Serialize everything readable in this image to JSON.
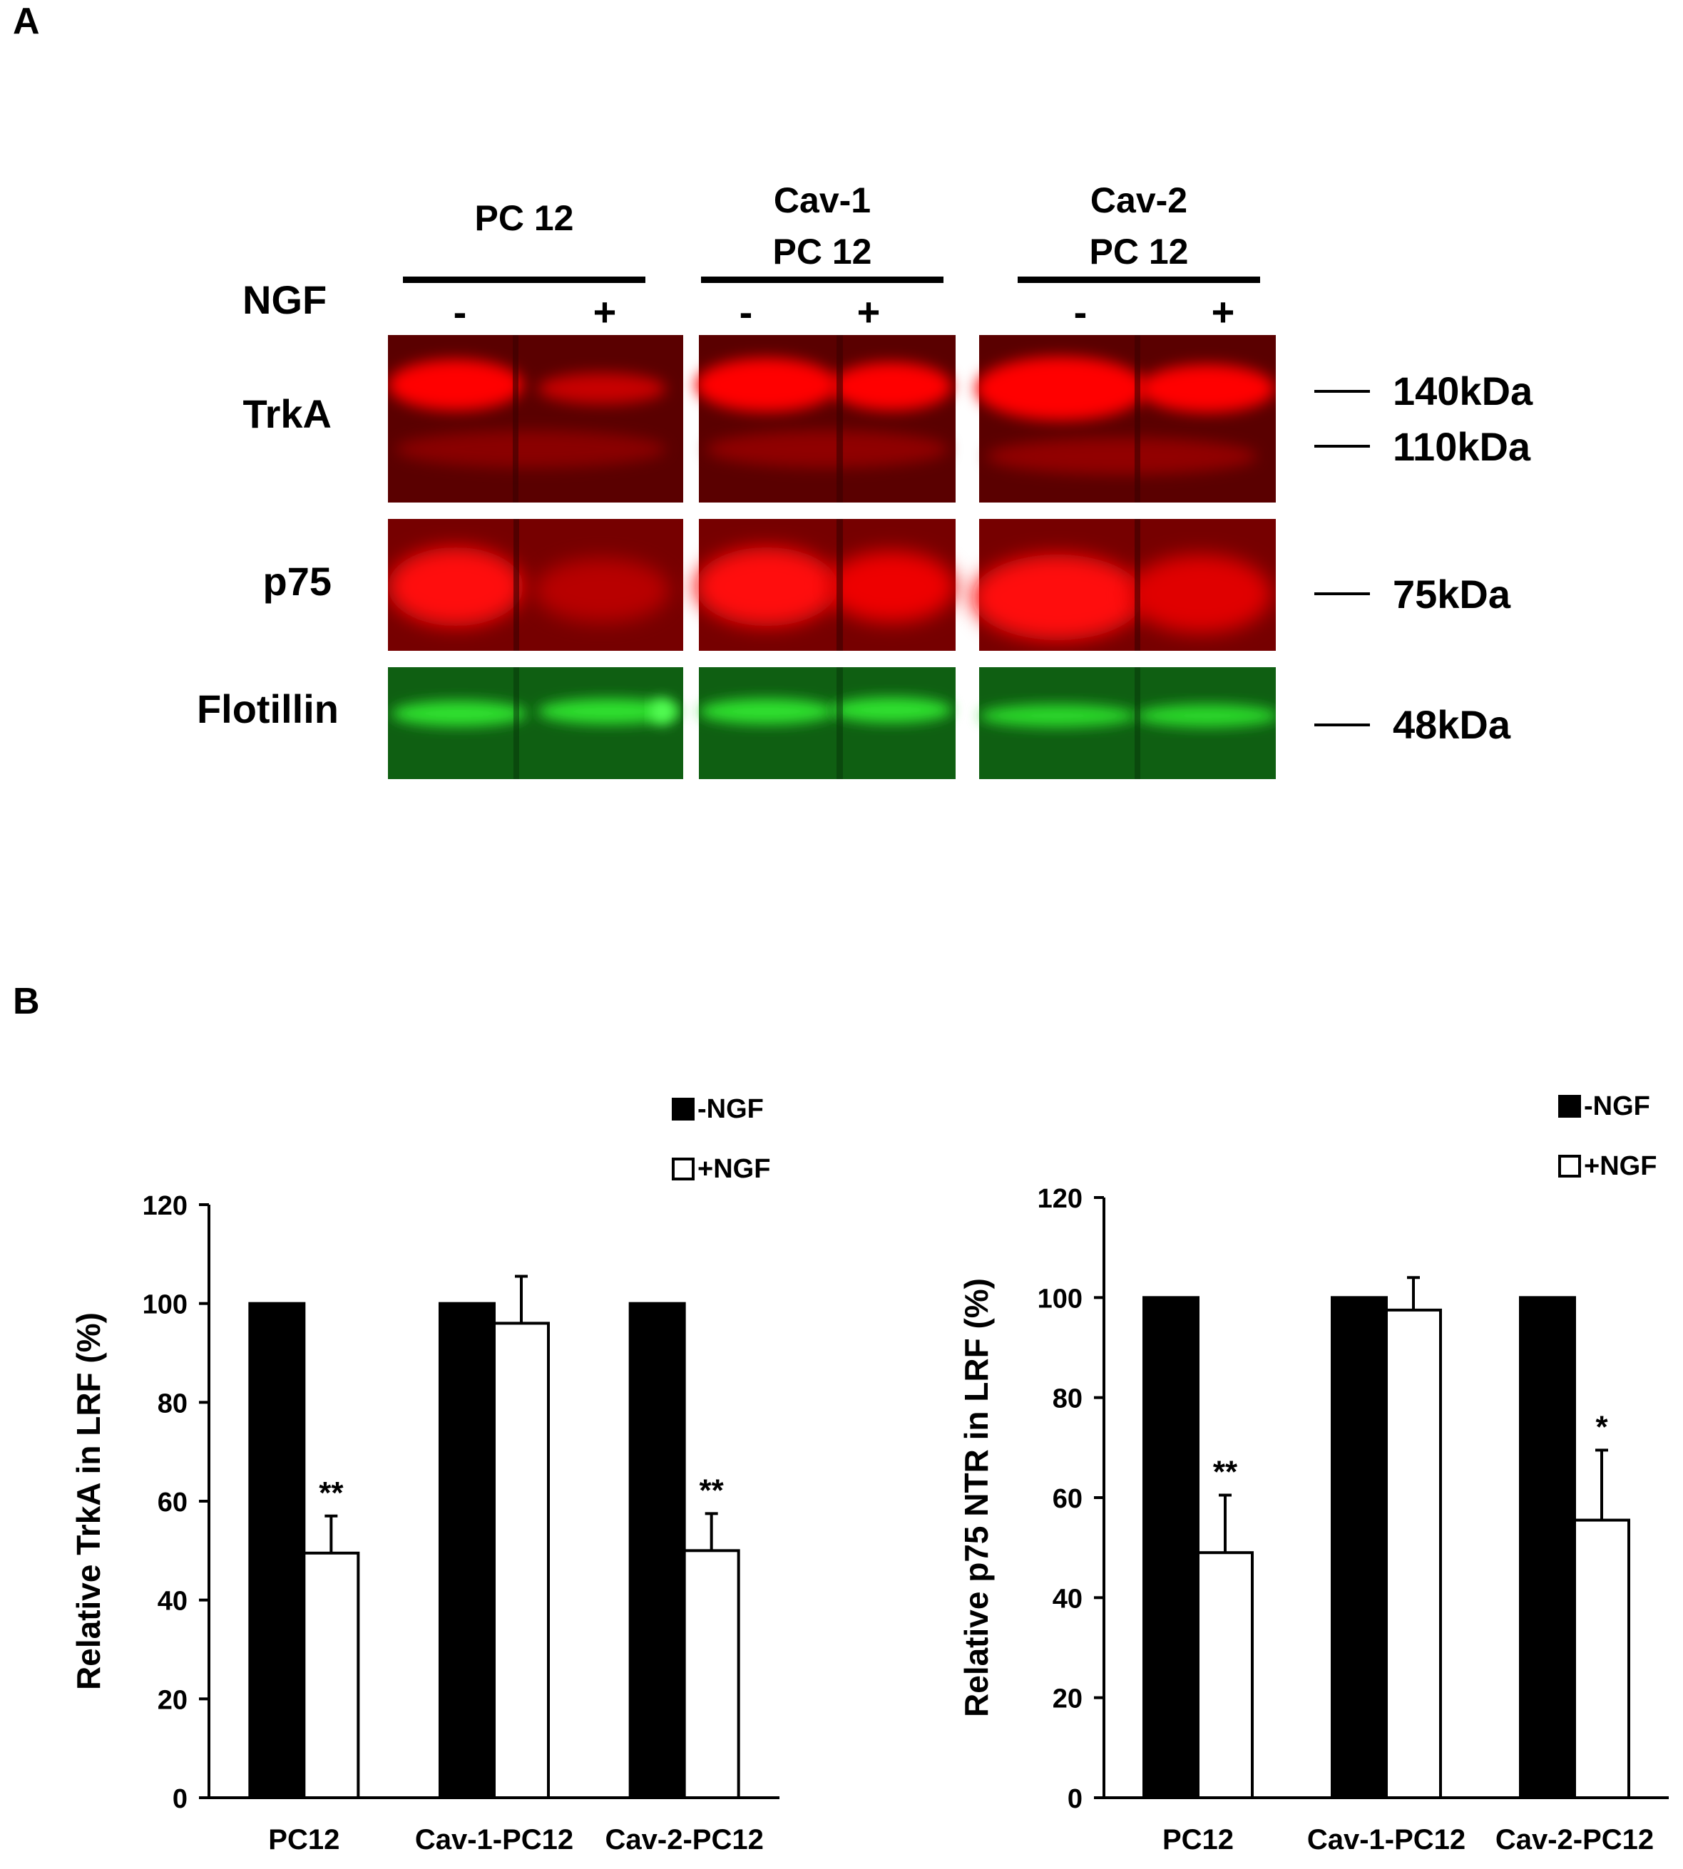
{
  "panel_a": {
    "letter": "A",
    "groups": [
      {
        "lines": [
          "",
          "PC 12"
        ]
      },
      {
        "lines": [
          "Cav-1",
          "PC 12"
        ]
      },
      {
        "lines": [
          "Cav-2",
          "PC 12"
        ]
      }
    ],
    "treatment_label": "NGF",
    "lane_signs": [
      "-",
      "+",
      "-",
      "+",
      "-",
      "+"
    ],
    "rows": [
      {
        "label": "TrkA",
        "color": "#ff0000",
        "bg": "#5a0000"
      },
      {
        "label": "p75",
        "color": "#ff1a10",
        "bg": "#700000"
      },
      {
        "label": "Flotillin",
        "color": "#22dd22",
        "bg": "#0d5510"
      }
    ],
    "markers": [
      "140kDa",
      "110kDa",
      "75kDa",
      "48kDa"
    ]
  },
  "panel_b": {
    "letter": "B"
  },
  "chart_data": [
    {
      "type": "bar",
      "ylabel": "Relative TrkA in LRF (%)",
      "xlabel": "",
      "categories": [
        "PC12",
        "Cav-1-PC12",
        "Cav-2-PC12"
      ],
      "ylim": [
        0,
        120
      ],
      "yticks": [
        "0",
        "20",
        "40",
        "60",
        "80",
        "100",
        "120"
      ],
      "series": [
        {
          "name": "-NGF",
          "color": "#000000",
          "values": [
            100,
            100,
            100
          ],
          "errors": [
            0,
            0,
            0
          ]
        },
        {
          "name": "+NGF",
          "color": "#ffffff",
          "values": [
            49.5,
            96,
            50
          ],
          "errors": [
            7.5,
            9.5,
            7.5
          ]
        }
      ],
      "annotations": [
        "**",
        "",
        "**"
      ],
      "legend_position": "top-right",
      "grid": false
    },
    {
      "type": "bar",
      "ylabel": "Relative p75 NTR in LRF (%)",
      "xlabel": "",
      "categories": [
        "PC12",
        "Cav-1-PC12",
        "Cav-2-PC12"
      ],
      "ylim": [
        0,
        120
      ],
      "yticks": [
        "0",
        "20",
        "40",
        "60",
        "80",
        "100",
        "120"
      ],
      "series": [
        {
          "name": "-NGF",
          "color": "#000000",
          "values": [
            100,
            100,
            100
          ],
          "errors": [
            0,
            0,
            0
          ]
        },
        {
          "name": "+NGF",
          "color": "#ffffff",
          "values": [
            49,
            97.5,
            55.5
          ],
          "errors": [
            11.5,
            6.5,
            14
          ]
        }
      ],
      "annotations": [
        "**",
        "",
        "*"
      ],
      "legend_position": "top-right",
      "grid": false
    }
  ]
}
